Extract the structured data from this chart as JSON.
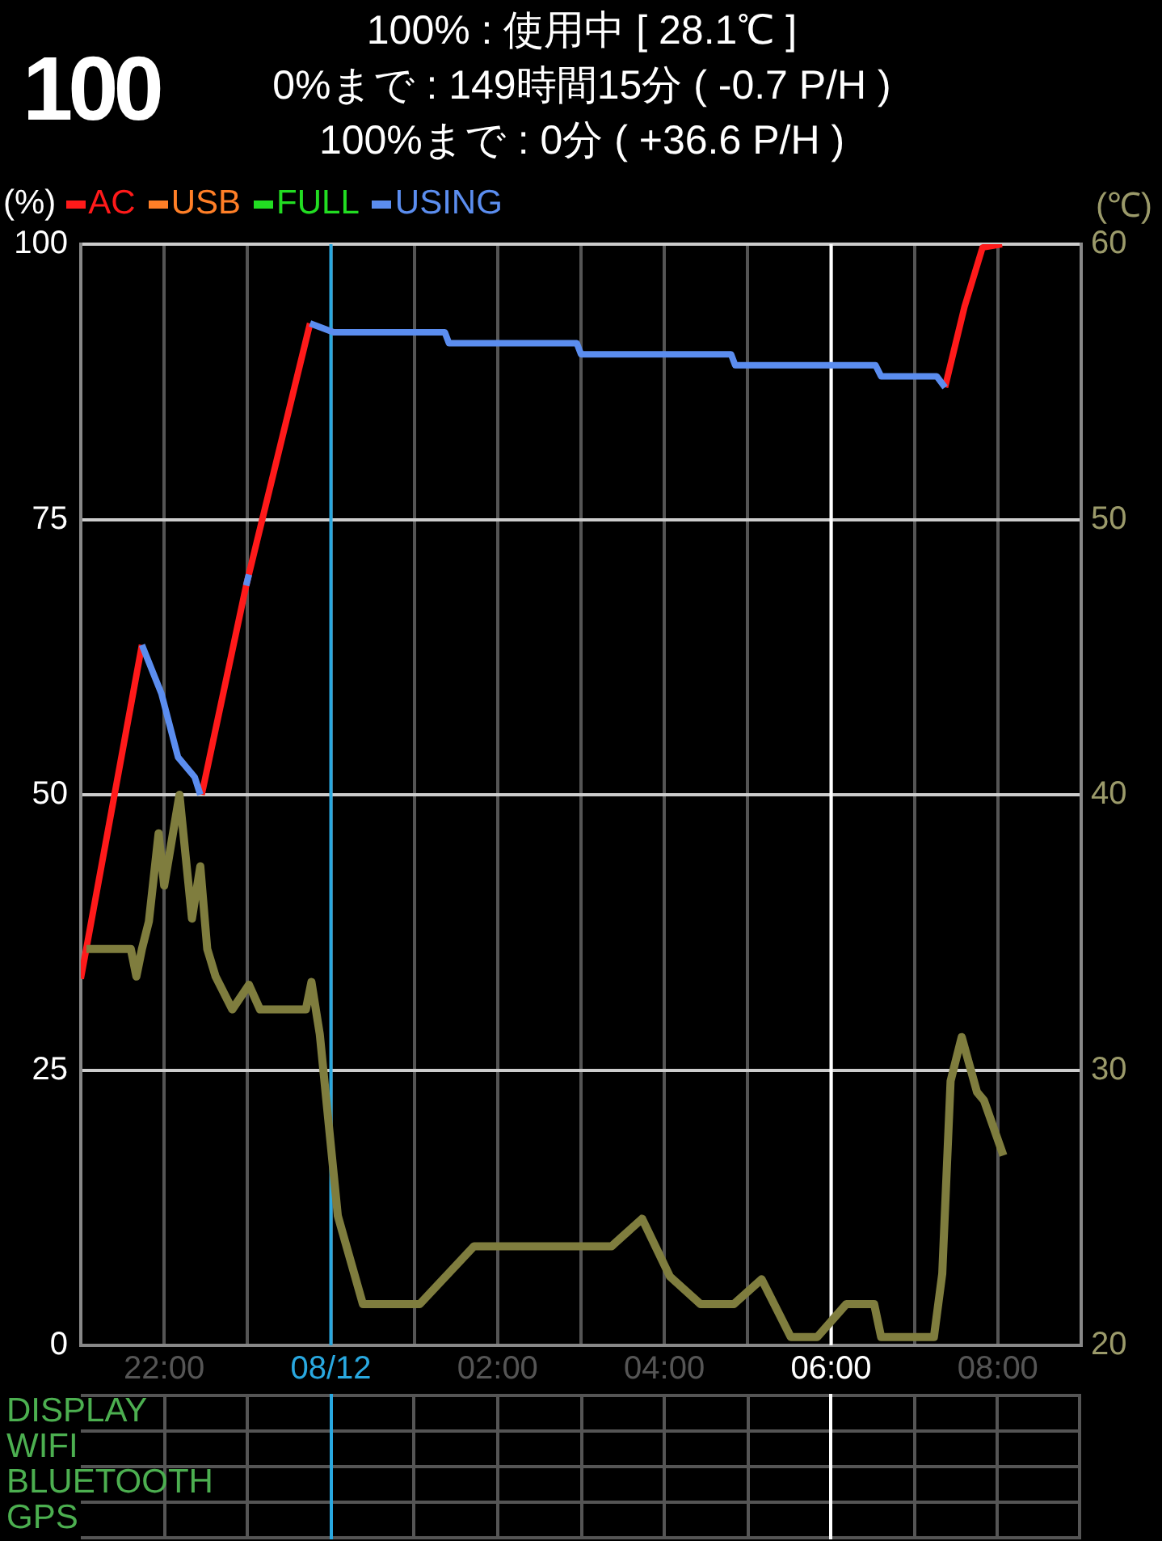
{
  "chart_data": [
    {
      "type": "line",
      "title": "100",
      "annotations": [
        "100% : 使用中 [ 28.1℃ ]",
        "0%まで : 149時間15分 ( -0.7 P/H )",
        "100%まで : 0分 ( +36.6 P/H )"
      ],
      "ylabel": "(%)",
      "y2label": "(℃)",
      "xlim": [
        "--08-11T21:00",
        "--08-12T09:00"
      ],
      "xticks": [
        {
          "value": "--08-11T22:00",
          "label": "22:00"
        },
        {
          "value": "--08-11T23:00",
          "label": null
        },
        {
          "value": "--08-12T00:00",
          "label": "08/12"
        },
        {
          "value": "--08-12T01:00",
          "label": null
        },
        {
          "value": "--08-12T02:00",
          "label": "02:00"
        },
        {
          "value": "--08-12T03:00",
          "label": null
        },
        {
          "value": "--08-12T04:00",
          "label": "04:00"
        },
        {
          "value": "--08-12T05:00",
          "label": null
        },
        {
          "value": "--08-12T06:00",
          "label": "06:00"
        },
        {
          "value": "--08-12T07:00",
          "label": null
        },
        {
          "value": "--08-12T08:00",
          "label": "08:00"
        }
      ],
      "ylim": [
        0,
        100
      ],
      "yticks": [
        0,
        25,
        50,
        75,
        100
      ],
      "y2lim": [
        20,
        60
      ],
      "y2ticks": [
        20,
        30,
        40,
        50,
        60
      ],
      "grid": true,
      "legend": "top left",
      "marker": "none",
      "line_style": "solid",
      "ref_lines": [
        {
          "axis": "x",
          "value": "--08-12T00:00",
          "color": "#29a8e0"
        },
        {
          "axis": "x",
          "value": "--08-12T06:00",
          "color": "#ffffff"
        }
      ],
      "series": [
        {
          "name": "AC",
          "color": "#ff1a1a",
          "x": [
            "--08-11T21:00",
            "--08-11T21:44",
            "--08-11T21:45",
            "--08-11T22:27",
            "--08-11T22:59",
            "--08-11T23:45",
            "--08-11T23:46",
            "--08-12T07:22",
            "--08-12T07:36",
            "--08-12T07:49",
            "--08-12T08:03"
          ],
          "values": [
            33.3,
            63.6,
            null,
            50,
            69,
            92.8,
            null,
            87,
            94.3,
            99.7,
            100
          ]
        },
        {
          "name": "USB",
          "color": "#ff7f27"
        },
        {
          "name": "FULL",
          "color": "#22dd22"
        },
        {
          "name": "USING",
          "color": "#5b8def",
          "x": [
            "--08-11T21:44",
            "--08-11T21:58",
            "--08-11T22:10",
            "--08-11T22:22",
            "--08-11T22:26",
            "--08-11T22:27",
            "--08-11T22:59",
            "--08-11T23:01",
            "--08-11T23:02",
            "--08-11T23:45",
            "--08-12T00:02",
            "--08-12T01:22",
            "--08-12T01:25",
            "--08-12T02:57",
            "--08-12T03:00",
            "--08-12T04:48",
            "--08-12T04:51",
            "--08-12T06:32",
            "--08-12T06:36",
            "--08-12T07:16",
            "--08-12T07:22"
          ],
          "values": [
            63.6,
            59.2,
            53.4,
            51.6,
            50,
            null,
            69,
            70,
            null,
            92.8,
            92,
            92,
            91,
            91,
            90,
            90,
            89,
            89,
            88,
            88,
            87
          ]
        },
        {
          "color": "#7f7d3e",
          "axis": "y2",
          "x": [
            "--08-11T21:04",
            "--08-11T21:36",
            "--08-11T21:40",
            "--08-11T21:44",
            "--08-11T21:49",
            "--08-11T21:56",
            "--08-11T22:00",
            "--08-11T22:11",
            "--08-11T22:20",
            "--08-11T22:26",
            "--08-11T22:31",
            "--08-11T22:37",
            "--08-11T22:49",
            "--08-11T23:01",
            "--08-11T23:09",
            "--08-11T23:42",
            "--08-11T23:46",
            "--08-11T23:52",
            "--08-12T00:05",
            "--08-12T00:23",
            "--08-12T01:04",
            "--08-12T01:43",
            "--08-12T03:22",
            "--08-12T03:44",
            "--08-12T04:04",
            "--08-12T04:26",
            "--08-12T04:50",
            "--08-12T05:10",
            "--08-12T05:31",
            "--08-12T05:50",
            "--08-12T06:11",
            "--08-12T06:31",
            "--08-12T06:36",
            "--08-12T07:14",
            "--08-12T07:20",
            "--08-12T07:26",
            "--08-12T07:34",
            "--08-12T07:45",
            "--08-12T07:50",
            "--08-12T08:04"
          ],
          "values": [
            34.4,
            34.4,
            33.4,
            34.4,
            35.4,
            38.6,
            36.7,
            40,
            35.5,
            37.4,
            34.4,
            33.4,
            32.2,
            33.1,
            32.2,
            32.2,
            33.2,
            31.3,
            24.7,
            21.5,
            21.5,
            23.6,
            23.6,
            24.6,
            22.5,
            21.5,
            21.5,
            22.4,
            20.3,
            20.3,
            21.5,
            21.5,
            20.3,
            20.3,
            22.6,
            29.6,
            31.2,
            29.2,
            28.9,
            26.9
          ]
        }
      ]
    },
    {
      "type": "other",
      "annotations": [
        "DISPLAY",
        "WIFI",
        "BLUETOOTH",
        "GPS"
      ]
    }
  ]
}
